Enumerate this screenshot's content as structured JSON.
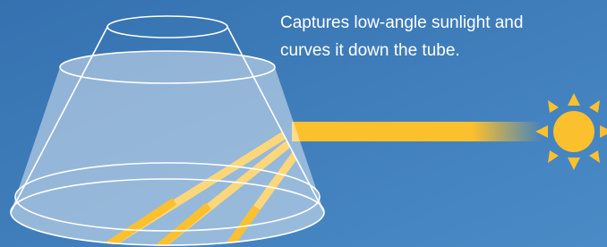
{
  "caption": {
    "lines": [
      "Captures low-angle sunlight and",
      "curves it down the tube."
    ]
  }
}
